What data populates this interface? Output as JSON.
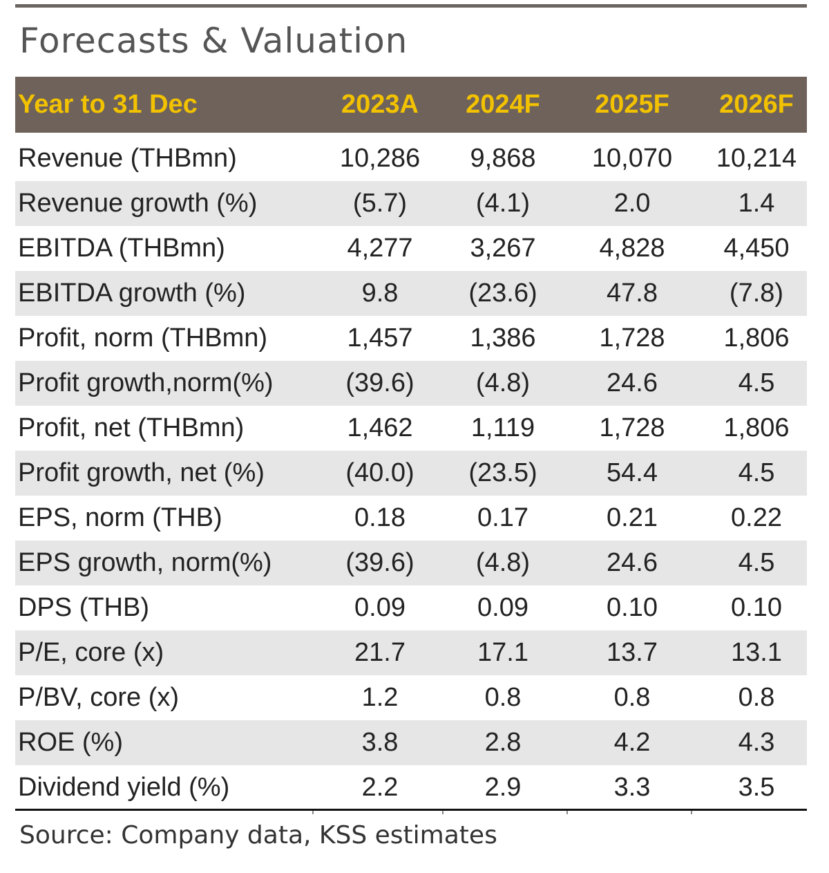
{
  "title": "Forecasts & Valuation",
  "table": {
    "header": [
      "Year to 31 Dec",
      "2023A",
      "2024F",
      "2025F",
      "2026F"
    ],
    "rows": [
      [
        "Revenue (THBmn)",
        "10,286",
        "9,868",
        "10,070",
        "10,214"
      ],
      [
        "Revenue growth (%)",
        "(5.7)",
        "(4.1)",
        "2.0",
        "1.4"
      ],
      [
        "EBITDA (THBmn)",
        "4,277",
        "3,267",
        "4,828",
        "4,450"
      ],
      [
        "EBITDA growth (%)",
        "9.8",
        "(23.6)",
        "47.8",
        "(7.8)"
      ],
      [
        "Profit, norm (THBmn)",
        "1,457",
        "1,386",
        "1,728",
        "1,806"
      ],
      [
        "Profit growth,norm(%)",
        "(39.6)",
        "(4.8)",
        "24.6",
        "4.5"
      ],
      [
        "Profit, net (THBmn)",
        "1,462",
        "1,119",
        "1,728",
        "1,806"
      ],
      [
        "Profit growth, net (%)",
        "(40.0)",
        "(23.5)",
        "54.4",
        "4.5"
      ],
      [
        "EPS, norm (THB)",
        "0.18",
        "0.17",
        "0.21",
        "0.22"
      ],
      [
        "EPS growth, norm(%)",
        "(39.6)",
        "(4.8)",
        "24.6",
        "4.5"
      ],
      [
        "DPS (THB)",
        "0.09",
        "0.09",
        "0.10",
        "0.10"
      ],
      [
        "P/E, core (x)",
        "21.7",
        "17.1",
        "13.7",
        "13.1"
      ],
      [
        "P/BV, core (x)",
        "1.2",
        "0.8",
        "0.8",
        "0.8"
      ],
      [
        "ROE (%)",
        "3.8",
        "2.8",
        "4.2",
        "4.3"
      ],
      [
        "Dividend yield (%)",
        "2.2",
        "2.9",
        "3.3",
        "3.5"
      ]
    ]
  },
  "source": "Source: Company data, KSS estimates"
}
